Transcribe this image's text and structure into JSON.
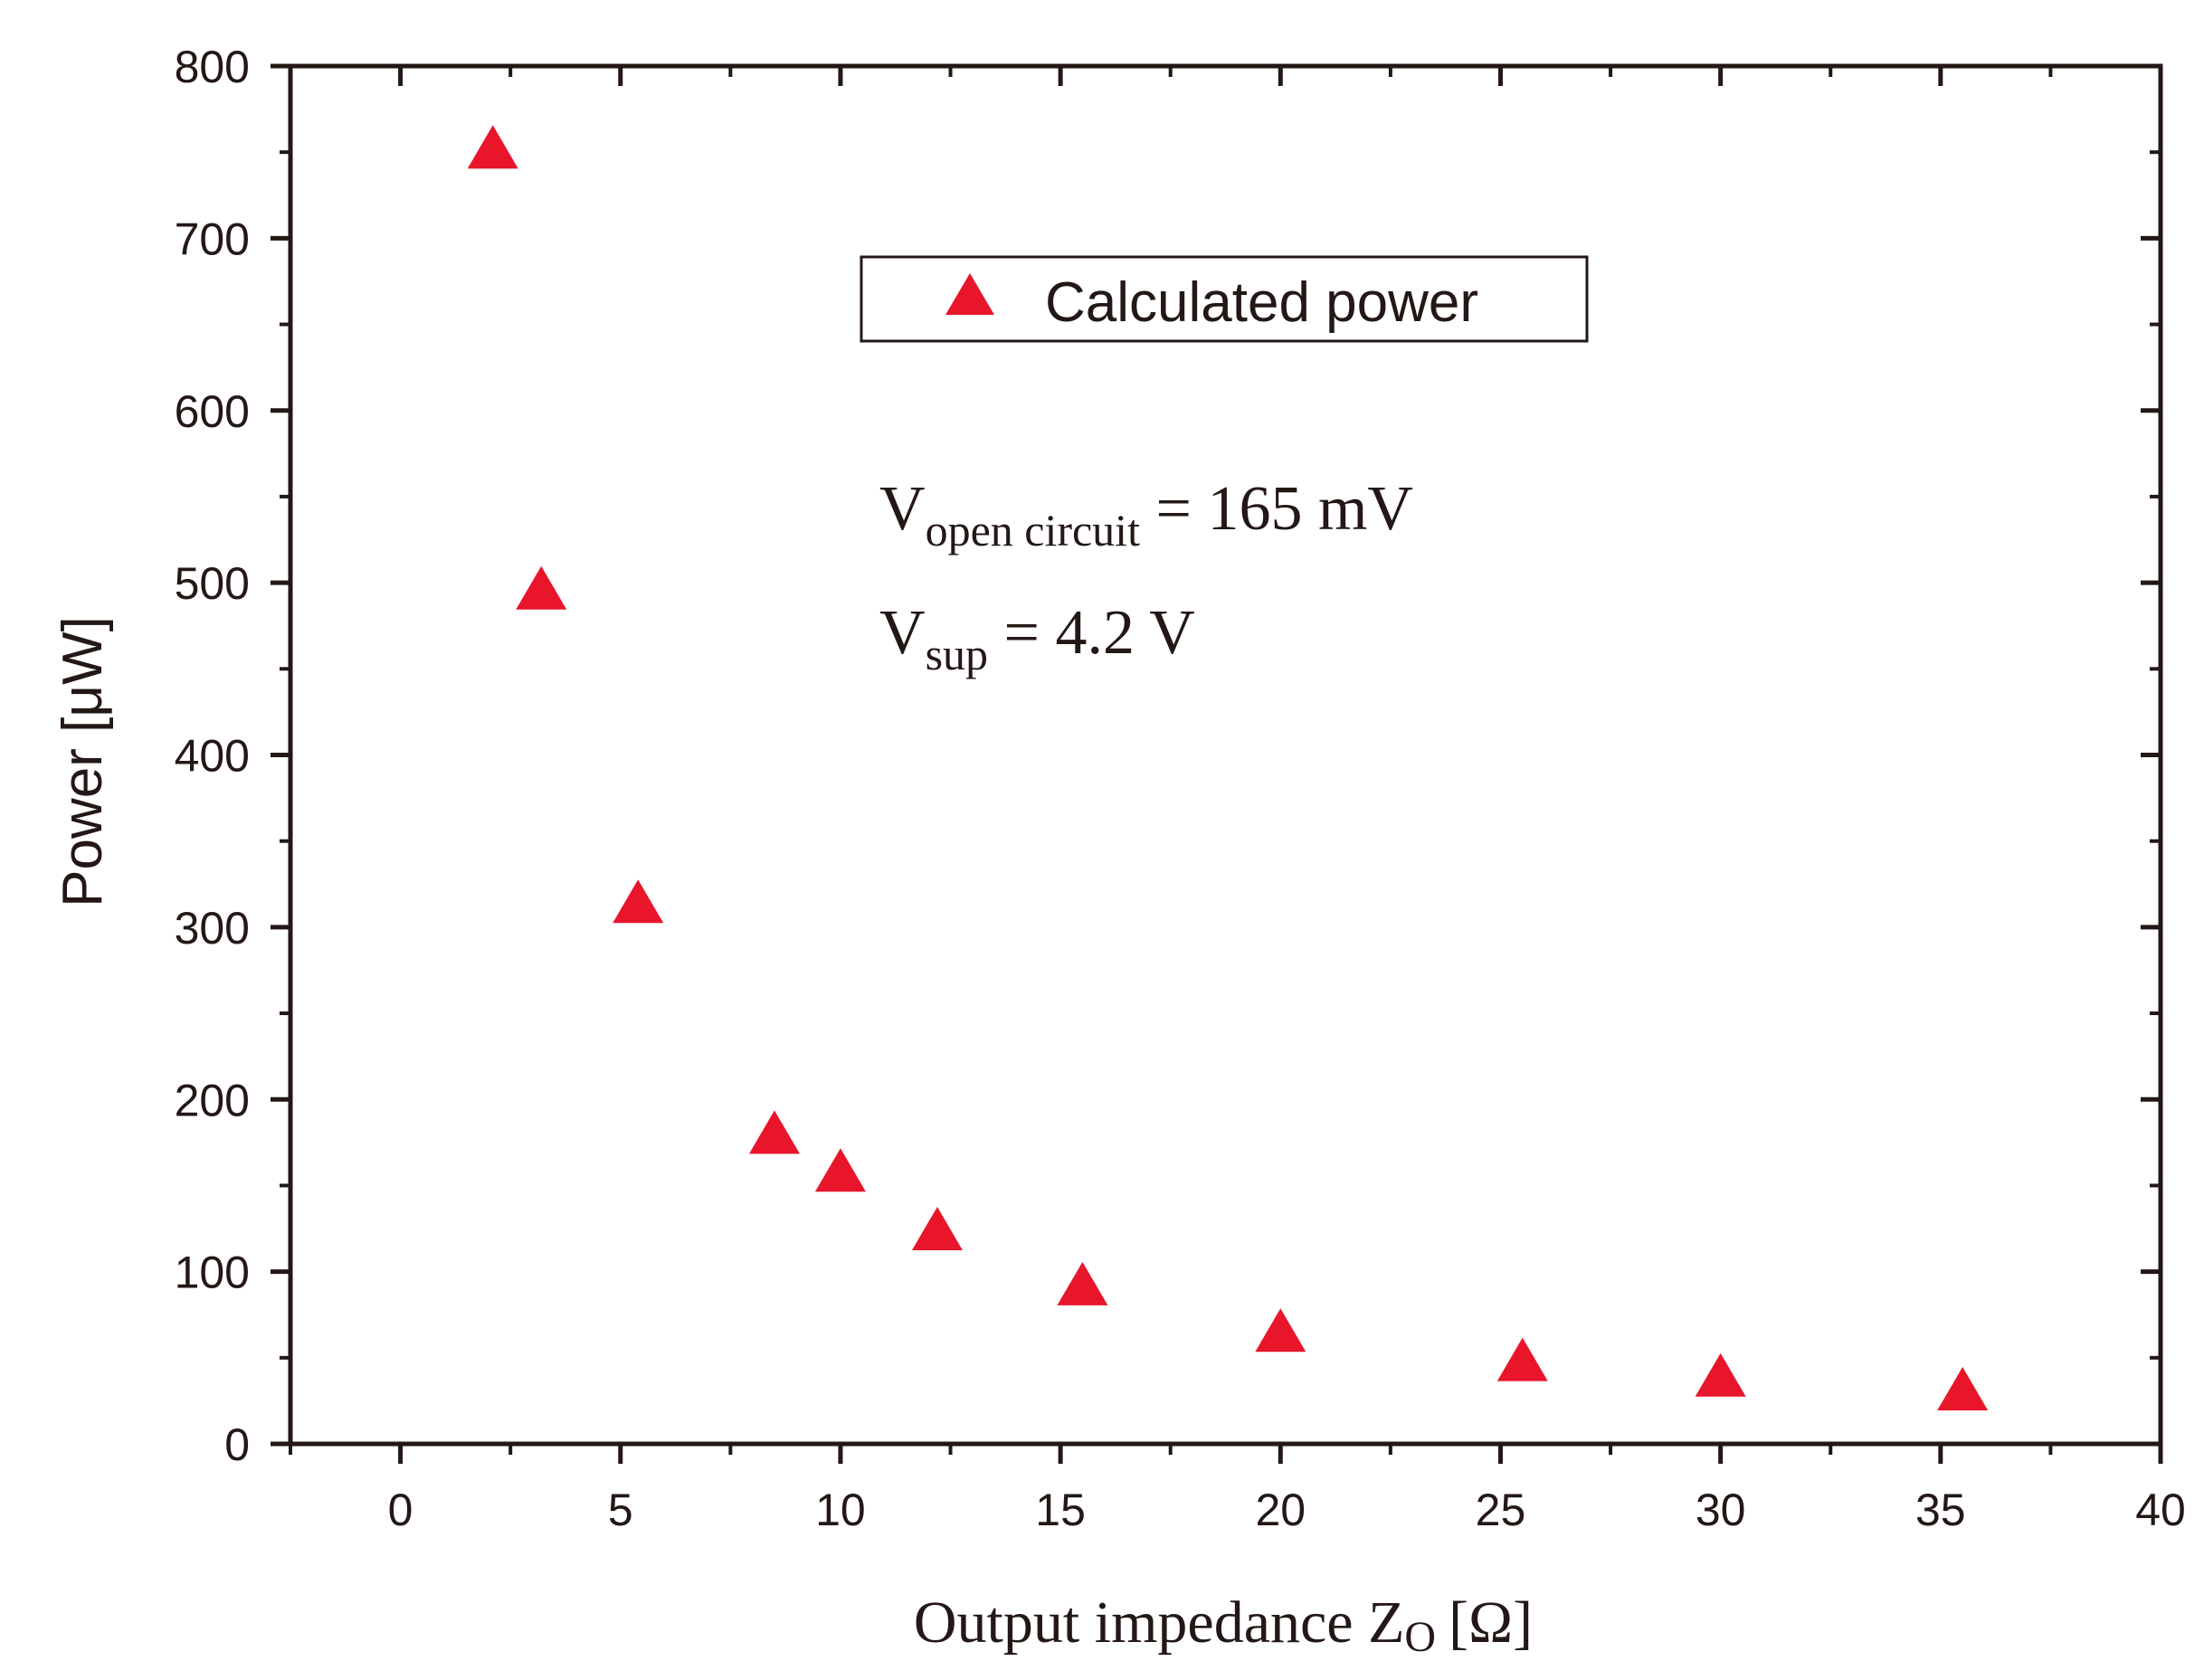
{
  "chart_data": {
    "type": "scatter",
    "xlabel": "Output impedance Z",
    "xlabel_subscript": "O",
    "xlabel_unit": "[Ω]",
    "ylabel": "Power [μW]",
    "xlim": [
      -2.5,
      40
    ],
    "ylim": [
      0,
      800
    ],
    "x_ticks": [
      0,
      5,
      10,
      15,
      20,
      25,
      30,
      35,
      40
    ],
    "y_ticks": [
      0,
      100,
      200,
      300,
      400,
      500,
      600,
      700,
      800
    ],
    "x_tick_labels": [
      "0",
      "5",
      "10",
      "15",
      "20",
      "25",
      "30",
      "35",
      "40"
    ],
    "y_tick_labels": [
      "0",
      "100",
      "200",
      "300",
      "400",
      "500",
      "600",
      "700",
      "800"
    ],
    "grid": false,
    "legend_position": "top-center",
    "series": [
      {
        "name": "Calculated power",
        "marker": "triangle",
        "color": "#E8152B",
        "x": [
          2.1,
          3.2,
          5.4,
          8.5,
          10.0,
          12.2,
          15.5,
          20.0,
          25.5,
          30.0,
          35.5
        ],
        "y": [
          750,
          494,
          312,
          178,
          156,
          122,
          90,
          63,
          46,
          37,
          29
        ]
      }
    ],
    "annotations": [
      {
        "main": "V",
        "sub": "open circuit",
        "rest": " = 165 mV"
      },
      {
        "main": "V",
        "sub": "sup",
        "rest": " = 4.2 V"
      }
    ],
    "axis_color": "#231816"
  }
}
